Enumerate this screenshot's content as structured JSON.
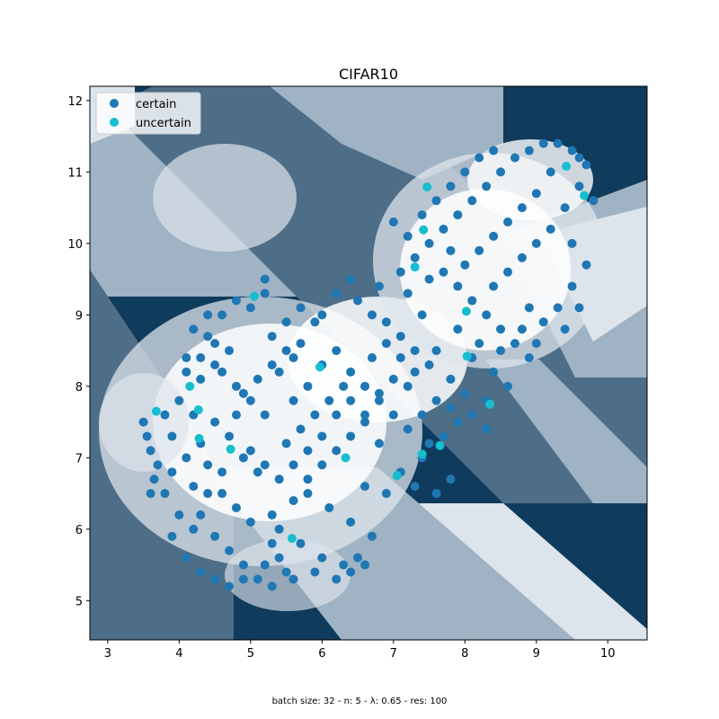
{
  "chart_data": {
    "type": "scatter",
    "title": "CIFAR10",
    "xlabel": "",
    "ylabel": "",
    "xlim": [
      2.75,
      10.55
    ],
    "ylim": [
      4.45,
      12.2
    ],
    "xticks": [
      3,
      4,
      5,
      6,
      7,
      8,
      9,
      10
    ],
    "yticks": [
      5,
      6,
      7,
      8,
      9,
      10,
      11,
      12
    ],
    "grid": false,
    "legend_placement": "top-left",
    "background": "decision-region heatmap (5 grey/blue shades)",
    "background_colors": [
      "#0f3b5c",
      "#4e6e88",
      "#9fb3c4",
      "#dde4eb",
      "#ffffff"
    ],
    "caption": "batch size: 32 - n: 5 - λ: 0.65 - res: 100",
    "series": [
      {
        "name": "certain",
        "color": "#1f77b4",
        "points": [
          [
            3.5,
            7.5
          ],
          [
            3.55,
            7.3
          ],
          [
            3.6,
            7.1
          ],
          [
            3.7,
            6.9
          ],
          [
            3.8,
            7.6
          ],
          [
            3.9,
            7.3
          ],
          [
            3.65,
            6.7
          ],
          [
            3.8,
            6.5
          ],
          [
            3.6,
            6.5
          ],
          [
            4.0,
            6.2
          ],
          [
            4.2,
            6.0
          ],
          [
            3.9,
            5.9
          ],
          [
            4.1,
            5.6
          ],
          [
            4.3,
            5.4
          ],
          [
            4.5,
            5.3
          ],
          [
            4.7,
            5.2
          ],
          [
            4.9,
            5.3
          ],
          [
            5.2,
            5.5
          ],
          [
            5.4,
            5.6
          ],
          [
            5.3,
            5.8
          ],
          [
            4.1,
            8.2
          ],
          [
            4.3,
            8.4
          ],
          [
            4.5,
            8.6
          ],
          [
            4.2,
            8.8
          ],
          [
            4.4,
            9.0
          ],
          [
            4.6,
            9.0
          ],
          [
            4.8,
            9.2
          ],
          [
            5.0,
            9.1
          ],
          [
            5.2,
            9.3
          ],
          [
            5.2,
            9.5
          ],
          [
            4.6,
            8.2
          ],
          [
            4.8,
            8.0
          ],
          [
            5.0,
            7.8
          ],
          [
            5.2,
            7.6
          ],
          [
            4.5,
            7.5
          ],
          [
            4.7,
            7.3
          ],
          [
            4.9,
            7.0
          ],
          [
            5.1,
            6.8
          ],
          [
            4.6,
            6.8
          ],
          [
            4.4,
            6.5
          ],
          [
            4.8,
            6.3
          ],
          [
            5.0,
            6.1
          ],
          [
            5.3,
            6.2
          ],
          [
            5.6,
            6.4
          ],
          [
            5.8,
            6.7
          ],
          [
            6.0,
            6.9
          ],
          [
            6.2,
            7.1
          ],
          [
            6.4,
            7.3
          ],
          [
            6.6,
            7.5
          ],
          [
            6.8,
            7.2
          ],
          [
            5.6,
            7.8
          ],
          [
            5.8,
            8.0
          ],
          [
            6.0,
            8.3
          ],
          [
            6.2,
            8.5
          ],
          [
            6.4,
            8.2
          ],
          [
            6.6,
            8.0
          ],
          [
            6.8,
            7.9
          ],
          [
            7.0,
            8.1
          ],
          [
            5.7,
            8.6
          ],
          [
            5.9,
            8.9
          ],
          [
            6.0,
            9.0
          ],
          [
            6.2,
            9.3
          ],
          [
            6.4,
            9.5
          ],
          [
            6.5,
            9.2
          ],
          [
            6.7,
            9.0
          ],
          [
            6.9,
            8.9
          ],
          [
            7.1,
            8.7
          ],
          [
            7.3,
            8.5
          ],
          [
            7.5,
            8.3
          ],
          [
            7.2,
            8.0
          ],
          [
            5.4,
            6.0
          ],
          [
            5.7,
            5.8
          ],
          [
            6.0,
            5.6
          ],
          [
            6.3,
            5.5
          ],
          [
            6.5,
            5.6
          ],
          [
            6.7,
            5.9
          ],
          [
            6.4,
            6.1
          ],
          [
            6.1,
            6.3
          ],
          [
            5.8,
            6.5
          ],
          [
            6.6,
            6.6
          ],
          [
            6.9,
            6.5
          ],
          [
            7.1,
            6.8
          ],
          [
            7.3,
            6.6
          ],
          [
            7.6,
            6.5
          ],
          [
            7.8,
            6.7
          ],
          [
            7.4,
            7.0
          ],
          [
            7.7,
            7.3
          ],
          [
            7.9,
            7.5
          ],
          [
            8.1,
            7.6
          ],
          [
            8.3,
            7.4
          ],
          [
            7.4,
            9.0
          ],
          [
            7.2,
            9.3
          ],
          [
            7.5,
            9.5
          ],
          [
            7.7,
            9.6
          ],
          [
            7.9,
            9.4
          ],
          [
            8.1,
            9.2
          ],
          [
            8.3,
            9.0
          ],
          [
            8.5,
            8.8
          ],
          [
            8.7,
            8.6
          ],
          [
            8.9,
            8.4
          ],
          [
            7.3,
            9.8
          ],
          [
            7.5,
            10.0
          ],
          [
            7.7,
            10.2
          ],
          [
            7.9,
            10.4
          ],
          [
            8.1,
            10.6
          ],
          [
            8.3,
            10.8
          ],
          [
            8.5,
            11.0
          ],
          [
            8.7,
            11.2
          ],
          [
            8.9,
            11.3
          ],
          [
            9.1,
            11.4
          ],
          [
            9.3,
            11.4
          ],
          [
            9.5,
            11.3
          ],
          [
            9.7,
            11.1
          ],
          [
            9.6,
            10.8
          ],
          [
            9.4,
            10.5
          ],
          [
            9.2,
            10.2
          ],
          [
            9.0,
            10.0
          ],
          [
            8.8,
            9.8
          ],
          [
            8.6,
            9.6
          ],
          [
            8.4,
            9.4
          ],
          [
            9.5,
            10.0
          ],
          [
            9.7,
            9.7
          ],
          [
            9.5,
            9.4
          ],
          [
            9.3,
            9.1
          ],
          [
            9.1,
            8.9
          ],
          [
            8.9,
            9.1
          ],
          [
            9.6,
            9.1
          ],
          [
            9.4,
            8.8
          ],
          [
            9.0,
            8.6
          ],
          [
            8.8,
            8.8
          ],
          [
            7.0,
            10.3
          ],
          [
            7.2,
            10.1
          ],
          [
            7.4,
            10.4
          ],
          [
            7.6,
            10.6
          ],
          [
            7.8,
            10.8
          ],
          [
            8.0,
            11.0
          ],
          [
            8.2,
            11.2
          ],
          [
            8.4,
            11.3
          ],
          [
            7.1,
            9.6
          ],
          [
            6.8,
            9.4
          ],
          [
            8.4,
            8.2
          ],
          [
            8.6,
            8.0
          ],
          [
            8.3,
            7.8
          ],
          [
            8.0,
            7.9
          ],
          [
            7.8,
            8.1
          ],
          [
            8.1,
            8.4
          ],
          [
            7.6,
            8.5
          ],
          [
            7.9,
            8.8
          ],
          [
            8.2,
            8.6
          ],
          [
            8.5,
            8.5
          ],
          [
            4.0,
            7.8
          ],
          [
            4.2,
            7.6
          ],
          [
            4.3,
            7.2
          ],
          [
            4.1,
            7.0
          ],
          [
            3.9,
            6.8
          ],
          [
            4.4,
            6.9
          ],
          [
            4.2,
            6.6
          ],
          [
            4.6,
            6.5
          ],
          [
            4.3,
            6.2
          ],
          [
            4.5,
            5.9
          ],
          [
            4.7,
            5.7
          ],
          [
            4.9,
            5.5
          ],
          [
            5.1,
            5.3
          ],
          [
            5.3,
            5.2
          ],
          [
            5.5,
            5.4
          ],
          [
            5.6,
            5.3
          ],
          [
            5.9,
            5.4
          ],
          [
            6.2,
            5.3
          ],
          [
            6.4,
            5.4
          ],
          [
            6.6,
            5.5
          ],
          [
            5.5,
            7.2
          ],
          [
            5.7,
            7.4
          ],
          [
            5.9,
            7.6
          ],
          [
            6.1,
            7.8
          ],
          [
            6.3,
            8.0
          ],
          [
            5.4,
            8.2
          ],
          [
            5.6,
            8.4
          ],
          [
            5.3,
            8.7
          ],
          [
            5.5,
            8.9
          ],
          [
            5.7,
            9.1
          ],
          [
            6.7,
            8.4
          ],
          [
            6.9,
            8.6
          ],
          [
            7.1,
            8.4
          ],
          [
            7.3,
            8.2
          ],
          [
            7.0,
            7.6
          ],
          [
            7.2,
            7.4
          ],
          [
            7.4,
            7.6
          ],
          [
            7.6,
            7.8
          ],
          [
            7.8,
            7.7
          ],
          [
            7.5,
            7.2
          ],
          [
            9.8,
            10.6
          ],
          [
            9.6,
            11.2
          ],
          [
            9.2,
            11.0
          ],
          [
            9.0,
            10.7
          ],
          [
            8.8,
            10.5
          ],
          [
            8.6,
            10.3
          ],
          [
            8.4,
            10.1
          ],
          [
            8.2,
            9.9
          ],
          [
            8.0,
            9.7
          ],
          [
            7.8,
            9.9
          ],
          [
            6.4,
            7.8
          ],
          [
            6.6,
            7.6
          ],
          [
            6.8,
            7.8
          ],
          [
            6.2,
            7.6
          ],
          [
            6.0,
            7.3
          ],
          [
            5.8,
            7.1
          ],
          [
            5.6,
            6.9
          ],
          [
            5.4,
            6.7
          ],
          [
            5.2,
            6.9
          ],
          [
            5.0,
            7.1
          ],
          [
            4.8,
            7.6
          ],
          [
            4.9,
            7.9
          ],
          [
            5.1,
            8.1
          ],
          [
            5.3,
            8.3
          ],
          [
            5.5,
            8.5
          ],
          [
            4.7,
            8.5
          ],
          [
            4.5,
            8.3
          ],
          [
            4.3,
            8.1
          ],
          [
            4.1,
            8.4
          ],
          [
            4.4,
            8.7
          ]
        ]
      },
      {
        "name": "uncertain",
        "color": "#17becf",
        "points": [
          [
            3.68,
            7.65
          ],
          [
            4.15,
            8.0
          ],
          [
            4.27,
            7.67
          ],
          [
            4.28,
            7.27
          ],
          [
            4.72,
            7.12
          ],
          [
            5.05,
            9.26
          ],
          [
            5.58,
            5.87
          ],
          [
            5.97,
            8.27
          ],
          [
            6.33,
            7.0
          ],
          [
            7.05,
            6.75
          ],
          [
            7.3,
            9.67
          ],
          [
            7.42,
            10.19
          ],
          [
            7.47,
            10.79
          ],
          [
            7.65,
            7.17
          ],
          [
            7.4,
            7.05
          ],
          [
            8.02,
            9.05
          ],
          [
            8.03,
            8.42
          ],
          [
            8.35,
            7.75
          ],
          [
            9.42,
            11.08
          ],
          [
            9.67,
            10.67
          ]
        ]
      }
    ]
  },
  "legend": {
    "certain_label": "certain",
    "uncertain_label": "uncertain"
  }
}
